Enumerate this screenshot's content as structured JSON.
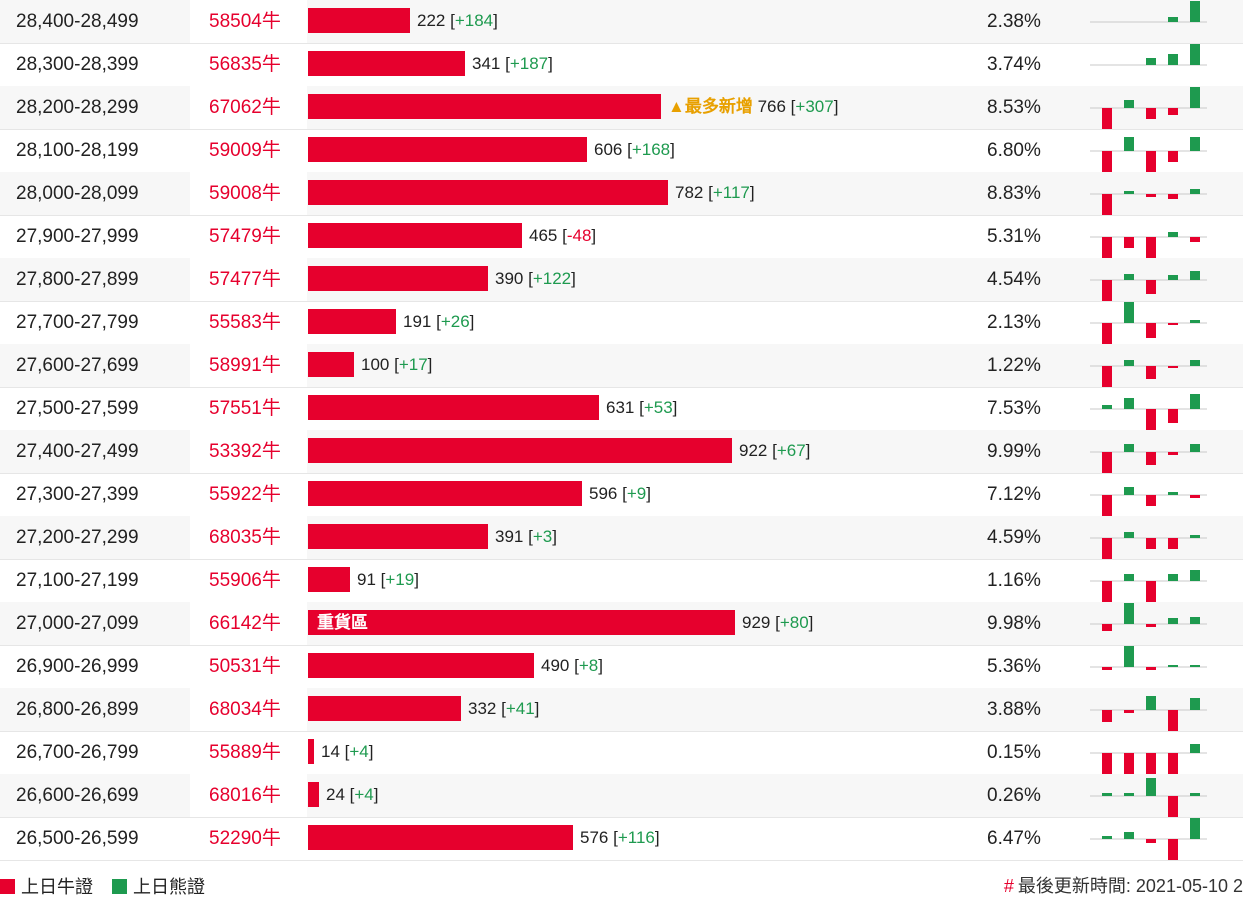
{
  "colors": {
    "bull": "#e6002d",
    "bear": "#1e9a4f",
    "highlight": "#e8a000"
  },
  "rows": [
    {
      "range": "28,400-28,499",
      "code": "58504牛",
      "value": "222",
      "change": "+184",
      "pct": "2.38%",
      "frac": 0.239,
      "spark": [
        0,
        0,
        0,
        0.22,
        1
      ]
    },
    {
      "range": "28,300-28,399",
      "code": "56835牛",
      "value": "341",
      "change": "+187",
      "pct": "3.74%",
      "frac": 0.367,
      "spark": [
        0,
        0,
        0.32,
        0.5,
        1
      ]
    },
    {
      "range": "28,200-28,299",
      "code": "67062牛",
      "value": "766",
      "change": "+307",
      "pct": "8.53%",
      "frac": 0.824,
      "note": "▲最多新增",
      "spark": [
        -1,
        0.4,
        -0.5,
        -0.35,
        1
      ]
    },
    {
      "range": "28,100-28,199",
      "code": "59009牛",
      "value": "606",
      "change": "+168",
      "pct": "6.80%",
      "frac": 0.652,
      "spark": [
        -1,
        0.65,
        -1,
        -0.5,
        0.65
      ]
    },
    {
      "range": "28,000-28,099",
      "code": "59008牛",
      "value": "782",
      "change": "+117",
      "pct": "8.83%",
      "frac": 0.841,
      "spark": [
        -1,
        0.15,
        -0.15,
        -0.25,
        0.22
      ]
    },
    {
      "range": "27,900-27,999",
      "code": "57479牛",
      "value": "465",
      "change": "-48",
      "pct": "5.31%",
      "frac": 0.5,
      "spark": [
        -1,
        -0.5,
        -1,
        0.25,
        -0.25
      ]
    },
    {
      "range": "27,800-27,899",
      "code": "57477牛",
      "value": "390",
      "change": "+122",
      "pct": "4.54%",
      "frac": 0.42,
      "spark": [
        -1,
        0.3,
        -0.65,
        0.22,
        0.45
      ]
    },
    {
      "range": "27,700-27,799",
      "code": "55583牛",
      "value": "191",
      "change": "+26",
      "pct": "2.13%",
      "frac": 0.205,
      "spark": [
        -1,
        1,
        -0.7,
        -0.1,
        0.15
      ]
    },
    {
      "range": "27,600-27,699",
      "code": "58991牛",
      "value": "100",
      "change": "+17",
      "pct": "1.22%",
      "frac": 0.108,
      "spark": [
        -1,
        0.3,
        -0.6,
        -0.1,
        0.3
      ]
    },
    {
      "range": "27,500-27,599",
      "code": "57551牛",
      "value": "631",
      "change": "+53",
      "pct": "7.53%",
      "frac": 0.679,
      "spark": [
        0.2,
        0.5,
        -1,
        -0.65,
        0.7
      ]
    },
    {
      "range": "27,400-27,499",
      "code": "53392牛",
      "value": "922",
      "change": "+67",
      "pct": "9.99%",
      "frac": 0.991,
      "spark": [
        -1,
        0.4,
        -0.6,
        -0.15,
        0.4
      ]
    },
    {
      "range": "27,300-27,399",
      "code": "55922牛",
      "value": "596",
      "change": "+9",
      "pct": "7.12%",
      "frac": 0.641,
      "spark": [
        -1,
        0.4,
        -0.5,
        0.12,
        -0.12
      ]
    },
    {
      "range": "27,200-27,299",
      "code": "68035牛",
      "value": "391",
      "change": "+3",
      "pct": "4.59%",
      "frac": 0.42,
      "spark": [
        -1,
        0.3,
        -0.5,
        -0.5,
        0.12
      ]
    },
    {
      "range": "27,100-27,199",
      "code": "55906牛",
      "value": "91",
      "change": "+19",
      "pct": "1.16%",
      "frac": 0.098,
      "spark": [
        -1,
        0.35,
        -1,
        0.35,
        0.5
      ]
    },
    {
      "range": "27,000-27,099",
      "code": "66142牛",
      "value": "929",
      "change": "+80",
      "pct": "9.98%",
      "frac": 0.998,
      "label": "重貨區",
      "spark": [
        -0.35,
        1,
        -0.15,
        0.3,
        0.35
      ]
    },
    {
      "range": "26,900-26,999",
      "code": "50531牛",
      "value": "490",
      "change": "+8",
      "pct": "5.36%",
      "frac": 0.527,
      "spark": [
        -0.15,
        1,
        -0.15,
        0.1,
        0.1
      ]
    },
    {
      "range": "26,800-26,899",
      "code": "68034牛",
      "value": "332",
      "change": "+41",
      "pct": "3.88%",
      "frac": 0.357,
      "spark": [
        -0.55,
        -0.12,
        0.65,
        -1,
        0.55
      ]
    },
    {
      "range": "26,700-26,799",
      "code": "55889牛",
      "value": "14",
      "change": "+4",
      "pct": "0.15%",
      "frac": 0.015,
      "spark": [
        -1,
        -1,
        -1,
        -1,
        0.45
      ]
    },
    {
      "range": "26,600-26,699",
      "code": "68016牛",
      "value": "24",
      "change": "+4",
      "pct": "0.26%",
      "frac": 0.026,
      "spark": [
        0.12,
        0.12,
        0.85,
        -1,
        0.12
      ]
    },
    {
      "range": "26,500-26,599",
      "code": "52290牛",
      "value": "576",
      "change": "+116",
      "pct": "6.47%",
      "frac": 0.619,
      "spark": [
        0.12,
        0.35,
        -0.18,
        -1,
        1
      ]
    }
  ],
  "legend": {
    "bull_label": "上日牛證",
    "bear_label": "上日熊證"
  },
  "footer": {
    "hash": "#",
    "updated": "最後更新時間: 2021-05-10 2"
  }
}
